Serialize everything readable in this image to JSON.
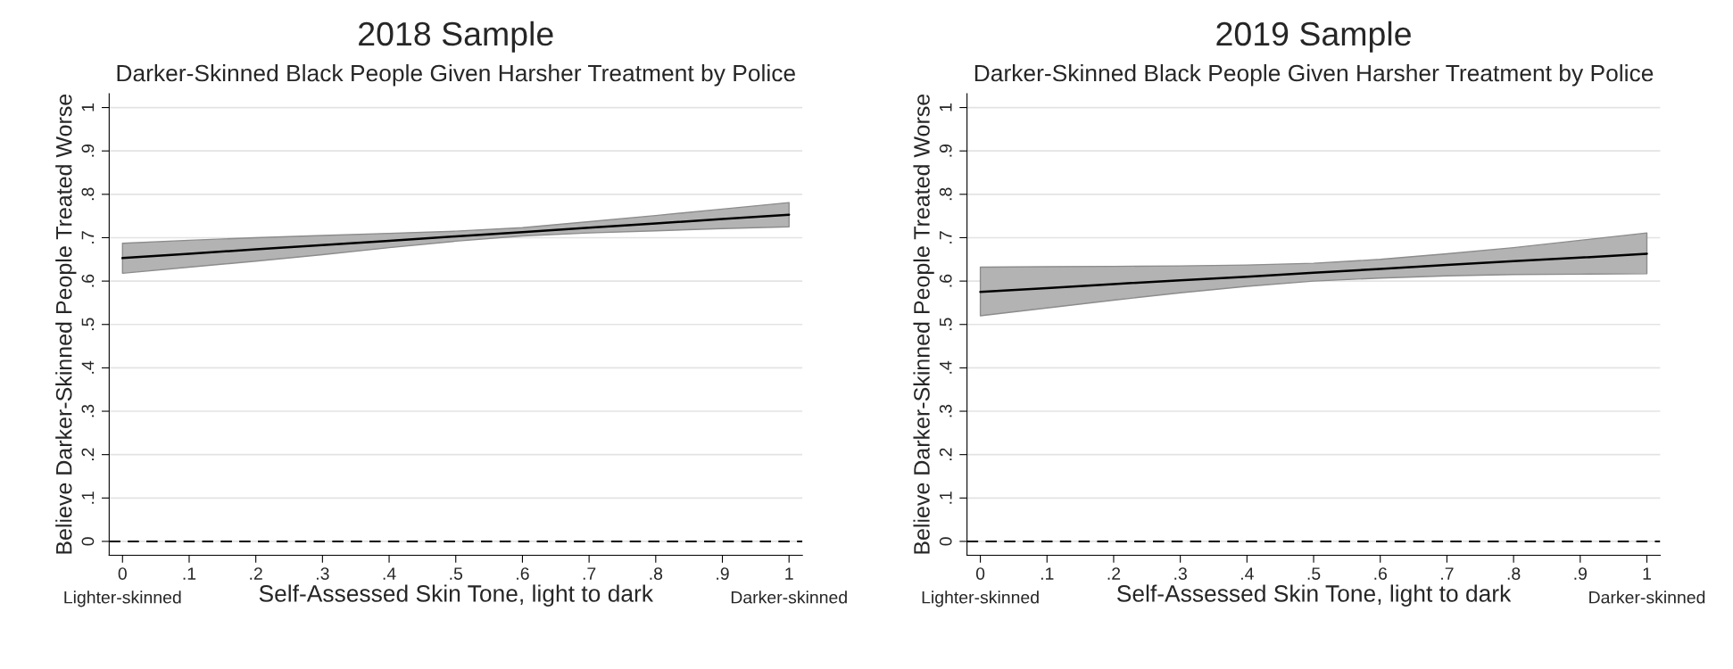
{
  "chart_data": [
    {
      "type": "line",
      "title": "2018 Sample",
      "subtitle": "Darker-Skinned Black People Given Harsher Treatment by Police",
      "xlabel": "Self-Assessed Skin Tone, light to dark",
      "ylabel": "Believe Darker-Skinned People Treated Worse",
      "series": [
        {
          "color": "#000000",
          "x": [
            0,
            0.1,
            0.2,
            0.3,
            0.4,
            0.5,
            0.6,
            0.7,
            0.8,
            0.9,
            1
          ],
          "values": [
            0.653,
            0.663,
            0.673,
            0.683,
            0.693,
            0.703,
            0.713,
            0.723,
            0.733,
            0.743,
            0.753
          ],
          "lower": [
            0.618,
            0.632,
            0.646,
            0.661,
            0.677,
            0.692,
            0.704,
            0.711,
            0.716,
            0.721,
            0.725
          ],
          "upper": [
            0.687,
            0.694,
            0.7,
            0.705,
            0.71,
            0.715,
            0.723,
            0.737,
            0.751,
            0.766,
            0.781
          ]
        }
      ],
      "xlim": [
        -0.02,
        1.02
      ],
      "ylim": [
        -0.032,
        1.032
      ],
      "xticks": [
        {
          "value": 0,
          "label": "0\nLighter-skinned"
        },
        {
          "value": 0.1,
          "label": ".1"
        },
        {
          "value": 0.2,
          "label": ".2"
        },
        {
          "value": 0.3,
          "label": ".3"
        },
        {
          "value": 0.4,
          "label": ".4"
        },
        {
          "value": 0.5,
          "label": ".5"
        },
        {
          "value": 0.6,
          "label": ".6"
        },
        {
          "value": 0.7,
          "label": ".7"
        },
        {
          "value": 0.8,
          "label": ".8"
        },
        {
          "value": 0.9,
          "label": ".9"
        },
        {
          "value": 1,
          "label": "1\nDarker-skinned"
        }
      ],
      "yticks": [
        0,
        {
          "value": 0.1,
          "label": ".1"
        },
        {
          "value": 0.2,
          "label": ".2"
        },
        {
          "value": 0.3,
          "label": ".3"
        },
        {
          "value": 0.4,
          "label": ".4"
        },
        {
          "value": 0.5,
          "label": ".5"
        },
        {
          "value": 0.6,
          "label": ".6"
        },
        {
          "value": 0.7,
          "label": ".7"
        },
        {
          "value": 0.8,
          "label": ".8"
        },
        {
          "value": 0.9,
          "label": ".9"
        },
        1
      ],
      "grid": "y",
      "ref_lines": [
        {
          "axis": "y",
          "value": 0,
          "color": "#000000",
          "line_style": "dashed"
        }
      ]
    },
    {
      "type": "line",
      "title": "2019 Sample",
      "subtitle": "Darker-Skinned Black People Given Harsher Treatment by Police",
      "xlabel": "Self-Assessed Skin Tone, light to dark",
      "ylabel": "Believe Darker-Skinned People Treated Worse",
      "series": [
        {
          "color": "#000000",
          "x": [
            0,
            0.1,
            0.2,
            0.3,
            0.4,
            0.5,
            0.6,
            0.7,
            0.8,
            0.9,
            1
          ],
          "values": [
            0.575,
            0.584,
            0.593,
            0.602,
            0.61,
            0.619,
            0.628,
            0.637,
            0.646,
            0.654,
            0.663
          ],
          "lower": [
            0.52,
            0.538,
            0.556,
            0.573,
            0.588,
            0.6,
            0.607,
            0.612,
            0.615,
            0.616,
            0.617
          ],
          "upper": [
            0.632,
            0.633,
            0.634,
            0.635,
            0.637,
            0.641,
            0.65,
            0.663,
            0.677,
            0.694,
            0.711
          ]
        }
      ],
      "xlim": [
        -0.02,
        1.02
      ],
      "ylim": [
        -0.032,
        1.032
      ],
      "xticks": [
        {
          "value": 0,
          "label": "0\nLighter-skinned"
        },
        {
          "value": 0.1,
          "label": ".1"
        },
        {
          "value": 0.2,
          "label": ".2"
        },
        {
          "value": 0.3,
          "label": ".3"
        },
        {
          "value": 0.4,
          "label": ".4"
        },
        {
          "value": 0.5,
          "label": ".5"
        },
        {
          "value": 0.6,
          "label": ".6"
        },
        {
          "value": 0.7,
          "label": ".7"
        },
        {
          "value": 0.8,
          "label": ".8"
        },
        {
          "value": 0.9,
          "label": ".9"
        },
        {
          "value": 1,
          "label": "1\nDarker-skinned"
        }
      ],
      "yticks": [
        0,
        {
          "value": 0.1,
          "label": ".1"
        },
        {
          "value": 0.2,
          "label": ".2"
        },
        {
          "value": 0.3,
          "label": ".3"
        },
        {
          "value": 0.4,
          "label": ".4"
        },
        {
          "value": 0.5,
          "label": ".5"
        },
        {
          "value": 0.6,
          "label": ".6"
        },
        {
          "value": 0.7,
          "label": ".7"
        },
        {
          "value": 0.8,
          "label": ".8"
        },
        {
          "value": 0.9,
          "label": ".9"
        },
        1
      ],
      "grid": "y",
      "ref_lines": [
        {
          "axis": "y",
          "value": 0,
          "color": "#000000",
          "line_style": "dashed"
        }
      ]
    }
  ]
}
